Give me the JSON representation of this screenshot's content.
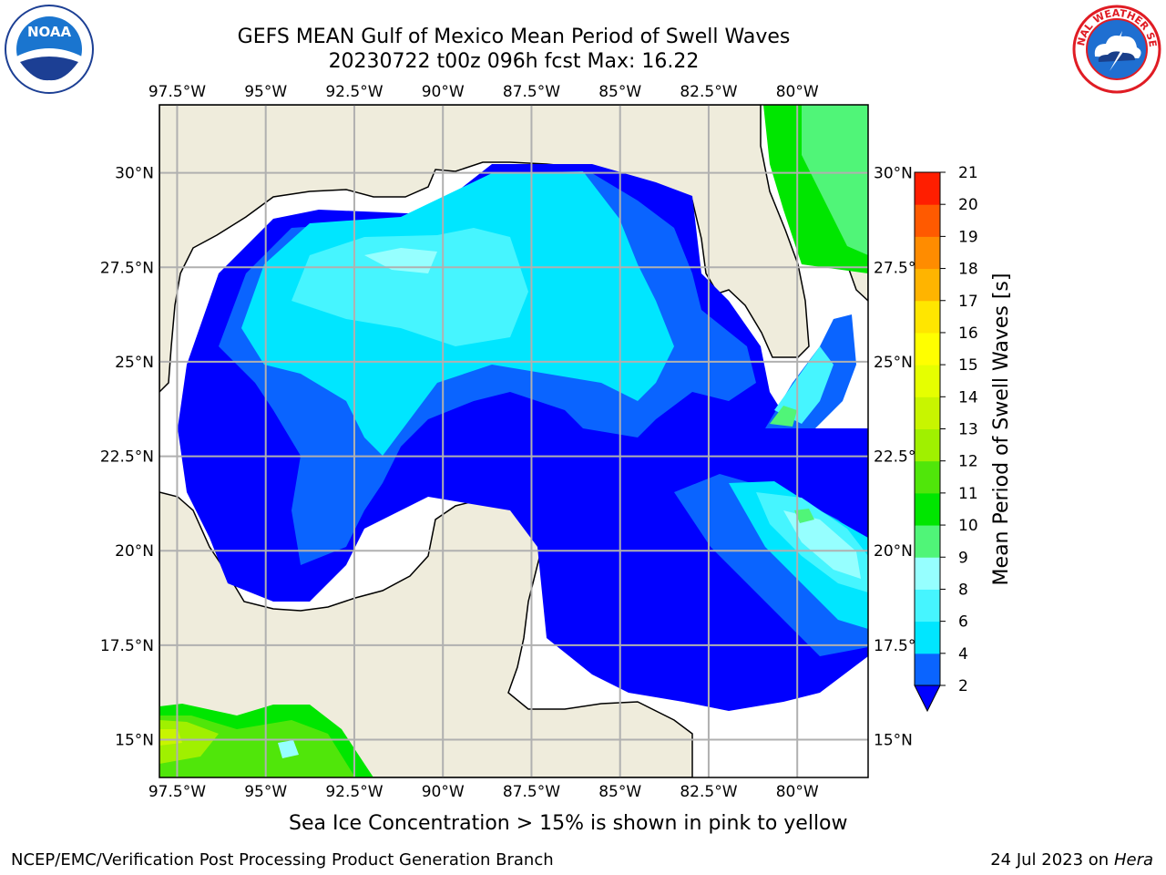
{
  "title": {
    "line1": "GEFS MEAN Gulf of Mexico Mean Period of Swell Waves",
    "line2": "20230722 t00z 096h fcst   Max: 16.22"
  },
  "logos": {
    "left": {
      "name": "noaa-logo",
      "text": "NOAA"
    },
    "right": {
      "name": "nws-logo",
      "text": "NATIONAL WEATHER SERVICE"
    }
  },
  "map": {
    "lon_ticks": [
      -97.5,
      -95,
      -92.5,
      -90,
      -87.5,
      -85,
      -82.5,
      -80
    ],
    "lon_labels": [
      "97.5°W",
      "95°W",
      "92.5°W",
      "90°W",
      "87.5°W",
      "85°W",
      "82.5°W",
      "80°W"
    ],
    "lat_ticks": [
      30,
      27.5,
      25,
      22.5,
      20,
      17.5,
      15
    ],
    "lat_labels": [
      "30°N",
      "27.5°N",
      "25°N",
      "22.5°N",
      "20°N",
      "17.5°N",
      "15°N"
    ],
    "lon_range": [
      -98,
      -78
    ],
    "lat_range": [
      14,
      31.8
    ],
    "land_color": "#efecdc",
    "grid_color": "#b0b0b0"
  },
  "colorbar": {
    "label": "Mean Period of Swell Waves [s]",
    "levels": [
      2,
      4,
      6,
      8,
      9,
      10,
      11,
      12,
      13,
      14,
      15,
      16,
      17,
      18,
      19,
      20,
      21
    ],
    "colors": [
      "#0a64ff",
      "#00e6ff",
      "#46f5ff",
      "#96ffff",
      "#50f578",
      "#00e600",
      "#50e60a",
      "#a0f000",
      "#c8f500",
      "#e6ff00",
      "#ffff00",
      "#ffe600",
      "#ffb400",
      "#ff8c00",
      "#ff5a00",
      "#ff1e00"
    ],
    "extend_color": "#0000ff"
  },
  "footer": {
    "ice_note": "Sea Ice Concentration > 15% is shown in pink to yellow",
    "left": "NCEP/EMC/Verification Post Processing Product Generation Branch",
    "right_prefix": "24 Jul 2023 on ",
    "right_host": "Hera"
  }
}
